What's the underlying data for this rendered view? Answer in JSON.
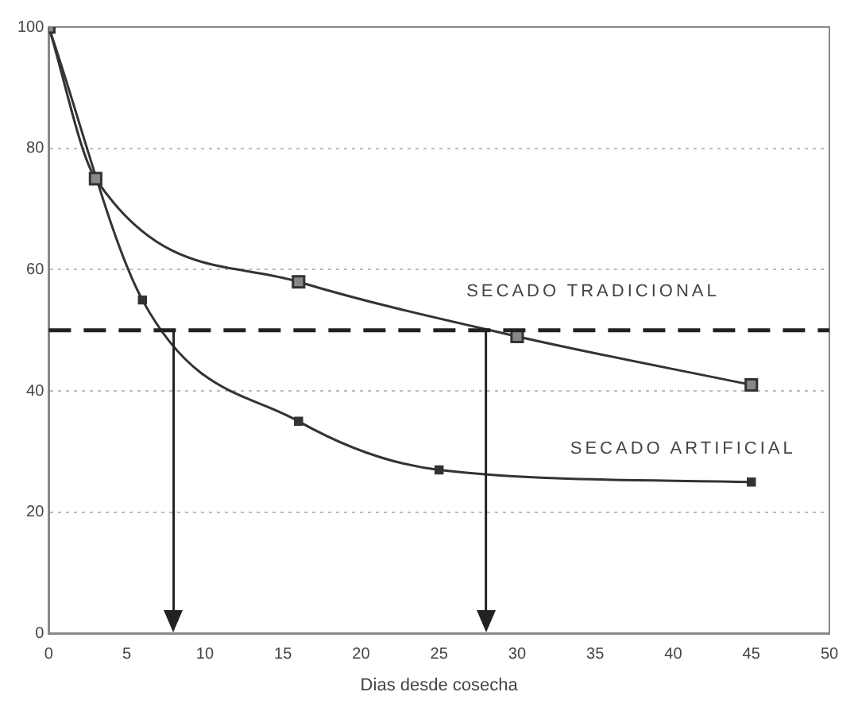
{
  "chart_data": {
    "type": "line",
    "xlabel": "Dias desde cosecha",
    "xlim": [
      0,
      50
    ],
    "xticks": [
      0,
      5,
      10,
      15,
      20,
      25,
      30,
      35,
      40,
      45,
      50
    ],
    "ylim": [
      0,
      100
    ],
    "yticks": [
      0,
      20,
      40,
      60,
      80,
      100
    ],
    "grid": "y",
    "legend": false,
    "marker": "square",
    "line_style": "solid",
    "series": [
      {
        "name": "SECADO TRADICIONAL",
        "color": "#333333",
        "x": [
          0,
          3,
          16,
          30,
          45
        ],
        "values": [
          100,
          75,
          58,
          49,
          41
        ]
      },
      {
        "name": "SECADO ARTIFICIAL",
        "color": "#333333",
        "x": [
          0,
          6,
          16,
          25,
          45
        ],
        "values": [
          100,
          55,
          35,
          27,
          25
        ]
      }
    ],
    "ref_lines": [
      {
        "axis": "y",
        "value": 50,
        "line_style": "dashed",
        "color": "#222222"
      },
      {
        "axis": "x",
        "value": 8,
        "line_style": "solid",
        "color": "#222222"
      },
      {
        "axis": "x",
        "value": 28,
        "line_style": "solid",
        "color": "#222222"
      }
    ]
  }
}
